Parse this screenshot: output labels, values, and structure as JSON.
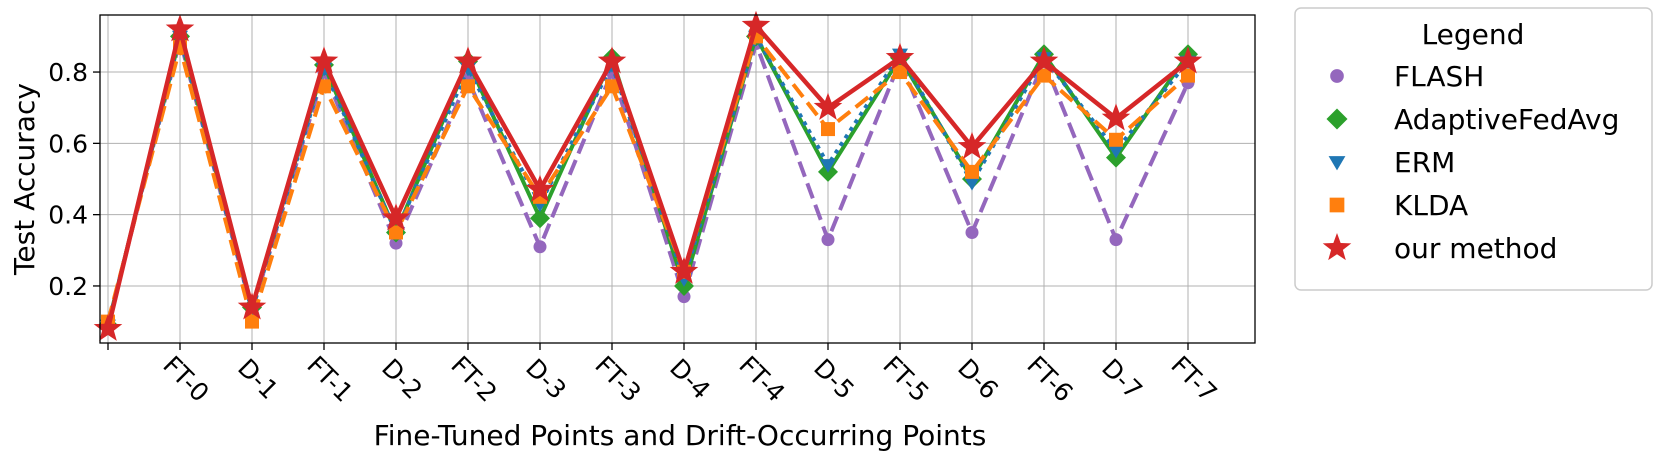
{
  "chart_data": {
    "type": "line",
    "title": "",
    "xlabel": "Fine-Tuned Points and Drift-Occurring Points",
    "ylabel": "Test Accuracy",
    "categories": [
      "",
      "FT-0",
      "D-1",
      "FT-1",
      "D-2",
      "FT-2",
      "D-3",
      "FT-3",
      "D-4",
      "FT-4",
      "D-5",
      "FT-5",
      "D-6",
      "FT-6",
      "D-7",
      "FT-7"
    ],
    "ylim": [
      0.04,
      0.96
    ],
    "yticks": [
      0.2,
      0.4,
      0.6,
      0.8
    ],
    "yticklabels": [
      "0.2",
      "0.4",
      "0.6",
      "0.8"
    ],
    "grid": true,
    "legend": {
      "title": "Legend",
      "placement": "outside-right"
    },
    "series": [
      {
        "name": "FLASH",
        "color": "#9467bd",
        "marker": "circle",
        "dash": "dashed",
        "values": [
          0.09,
          0.89,
          0.13,
          0.8,
          0.32,
          0.78,
          0.31,
          0.8,
          0.17,
          0.88,
          0.33,
          0.83,
          0.35,
          0.83,
          0.33,
          0.77
        ]
      },
      {
        "name": "AdaptiveFedAvg",
        "color": "#2ca02c",
        "marker": "diamond",
        "dash": "solid",
        "values": [
          0.09,
          0.9,
          0.14,
          0.82,
          0.35,
          0.83,
          0.39,
          0.84,
          0.2,
          0.9,
          0.52,
          0.84,
          0.5,
          0.85,
          0.56,
          0.85
        ]
      },
      {
        "name": "ERM",
        "color": "#1f77b4",
        "marker": "triangle-down",
        "dash": "dotted",
        "values": [
          0.09,
          0.9,
          0.13,
          0.81,
          0.35,
          0.81,
          0.43,
          0.82,
          0.22,
          0.9,
          0.54,
          0.85,
          0.49,
          0.84,
          0.58,
          0.83
        ]
      },
      {
        "name": "KLDA",
        "color": "#ff7f0e",
        "marker": "square",
        "dash": "dashed",
        "values": [
          0.1,
          0.87,
          0.1,
          0.76,
          0.35,
          0.76,
          0.45,
          0.76,
          0.24,
          0.9,
          0.64,
          0.8,
          0.52,
          0.79,
          0.61,
          0.79
        ]
      },
      {
        "name": "our method",
        "color": "#d62728",
        "marker": "star",
        "dash": "solid",
        "values": [
          0.08,
          0.92,
          0.14,
          0.83,
          0.39,
          0.83,
          0.47,
          0.83,
          0.24,
          0.93,
          0.7,
          0.84,
          0.59,
          0.83,
          0.67,
          0.83
        ]
      }
    ]
  }
}
